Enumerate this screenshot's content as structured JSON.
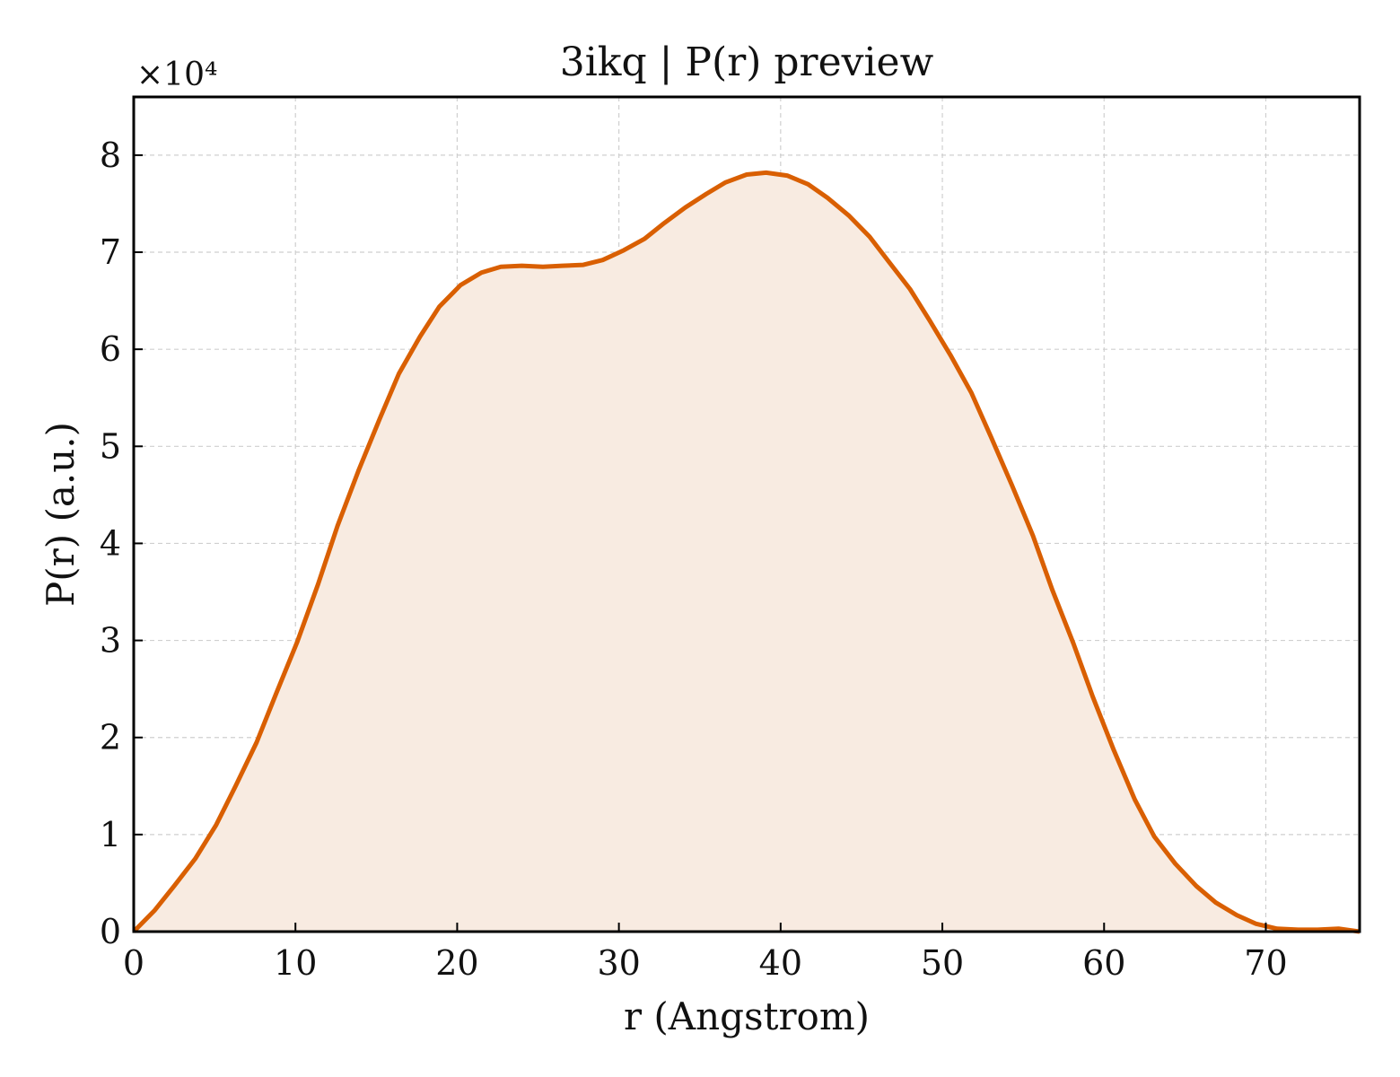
{
  "chart_data": {
    "type": "area",
    "title": "3ikq | P(r) preview",
    "xlabel": "r (Angstrom)",
    "ylabel": "P(r) (a.u.)",
    "y_offset_label": "×10⁴",
    "xlim": [
      0,
      75.8
    ],
    "ylim": [
      0,
      8.6
    ],
    "xticks": [
      0,
      10,
      20,
      30,
      40,
      50,
      60,
      70
    ],
    "yticks": [
      0,
      1,
      2,
      3,
      4,
      5,
      6,
      7,
      8
    ],
    "grid": true,
    "line_color": "#d95f02",
    "fill_color": "#f8ebe1",
    "series": [
      {
        "x": [
          0,
          1.3,
          2.5,
          3.8,
          5.1,
          6.3,
          7.6,
          8.8,
          10.1,
          11.4,
          12.6,
          13.9,
          15.2,
          16.4,
          17.7,
          18.9,
          20.2,
          21.5,
          22.7,
          24.0,
          25.3,
          26.5,
          27.8,
          29.0,
          30.3,
          31.6,
          32.8,
          34.1,
          35.4,
          36.6,
          37.9,
          39.1,
          40.4,
          41.7,
          42.9,
          44.2,
          45.5,
          46.7,
          48.0,
          49.2,
          50.5,
          51.8,
          53.0,
          54.3,
          55.6,
          56.8,
          58.1,
          59.3,
          60.6,
          61.9,
          63.1,
          64.4,
          65.7,
          66.9,
          68.2,
          69.4,
          70.7,
          72.0,
          73.2,
          74.5,
          75.8
        ],
        "y": [
          0,
          0.22,
          0.47,
          0.75,
          1.1,
          1.5,
          1.95,
          2.45,
          2.98,
          3.58,
          4.18,
          4.75,
          5.28,
          5.75,
          6.13,
          6.44,
          6.66,
          6.79,
          6.85,
          6.86,
          6.85,
          6.86,
          6.87,
          6.92,
          7.02,
          7.14,
          7.3,
          7.46,
          7.6,
          7.72,
          7.8,
          7.82,
          7.79,
          7.7,
          7.56,
          7.38,
          7.16,
          6.9,
          6.62,
          6.3,
          5.94,
          5.55,
          5.1,
          4.6,
          4.08,
          3.52,
          2.97,
          2.42,
          1.87,
          1.36,
          0.98,
          0.7,
          0.47,
          0.3,
          0.17,
          0.08,
          0.03,
          0.02,
          0.02,
          0.03,
          0
        ]
      }
    ]
  }
}
